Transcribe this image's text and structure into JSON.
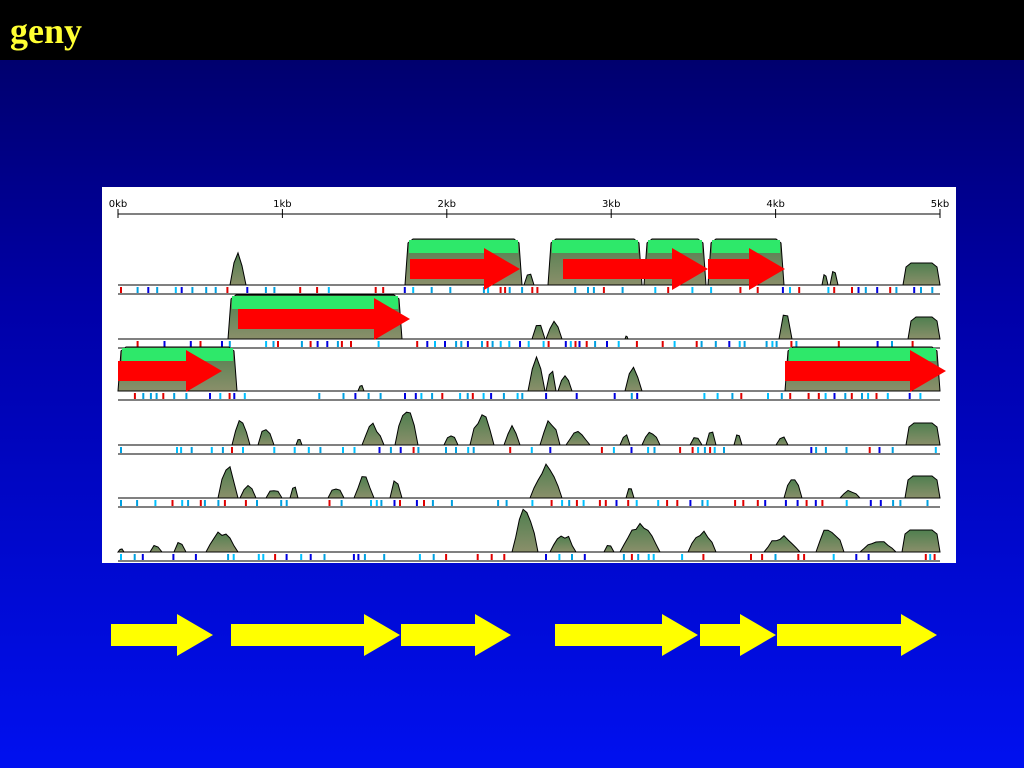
{
  "header": {
    "title": "geny"
  },
  "figure": {
    "axis_labels": [
      "0kb",
      "1kb",
      "2kb",
      "3kb",
      "4kb",
      "5kb"
    ]
  }
}
